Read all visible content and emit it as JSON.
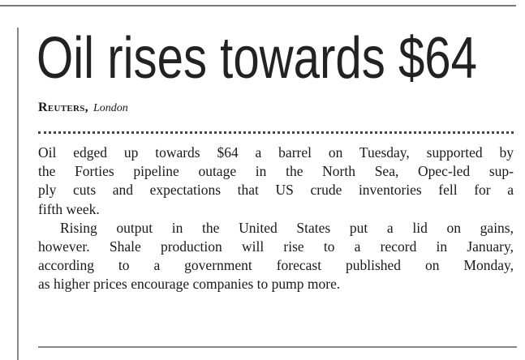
{
  "article": {
    "headline": "Oil rises towards $64",
    "agency": "Reuters,",
    "place": "London",
    "paragraphs": [
      {
        "lines": [
          "Oil edged up towards $64 a barrel on Tuesday, supported by",
          "the Forties pipeline outage in the North Sea, Opec-led sup-",
          "ply cuts and expectations that US crude inventories fell for a",
          "fifth week."
        ]
      },
      {
        "lines": [
          "Rising output in the United States put a lid on gains,",
          "however. Shale production will rise to a record in January,",
          "according to a government forecast published on Monday,",
          "as higher prices encourage companies to pump more."
        ]
      }
    ]
  }
}
